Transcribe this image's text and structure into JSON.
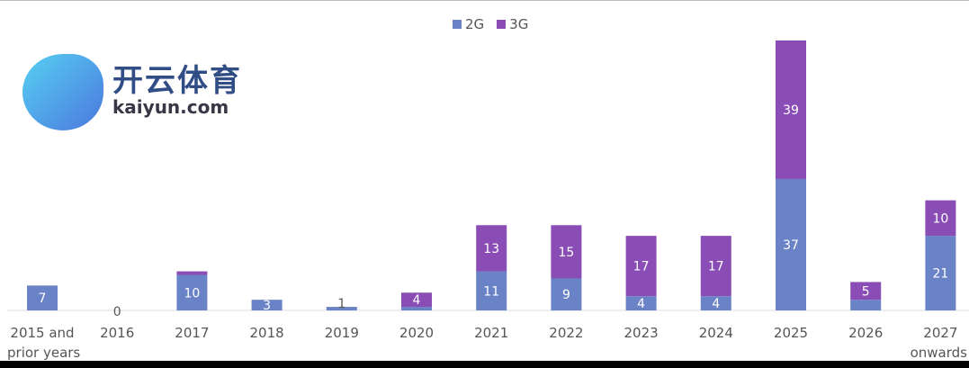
{
  "chart_data": {
    "type": "bar",
    "stacked": true,
    "title": "",
    "xlabel": "",
    "ylabel": "",
    "legend_position": "top-center",
    "grid": false,
    "categories": [
      "2015 and prior years",
      "2016",
      "2017",
      "2018",
      "2019",
      "2020",
      "2021",
      "2022",
      "2023",
      "2024",
      "2025",
      "2026",
      "2027 onwards"
    ],
    "series": [
      {
        "name": "2G",
        "color": "#6a83c6",
        "values": [
          7,
          0,
          10,
          3,
          1,
          1,
          11,
          9,
          4,
          4,
          37,
          3,
          21
        ]
      },
      {
        "name": "3G",
        "color": "#8a4db6",
        "values": [
          0,
          0,
          1,
          0,
          0,
          4,
          13,
          15,
          17,
          17,
          39,
          5,
          10
        ]
      }
    ],
    "ylim": [
      0,
      80
    ]
  },
  "watermark": {
    "cn": "开云体育",
    "en": "kaiyun.com"
  }
}
